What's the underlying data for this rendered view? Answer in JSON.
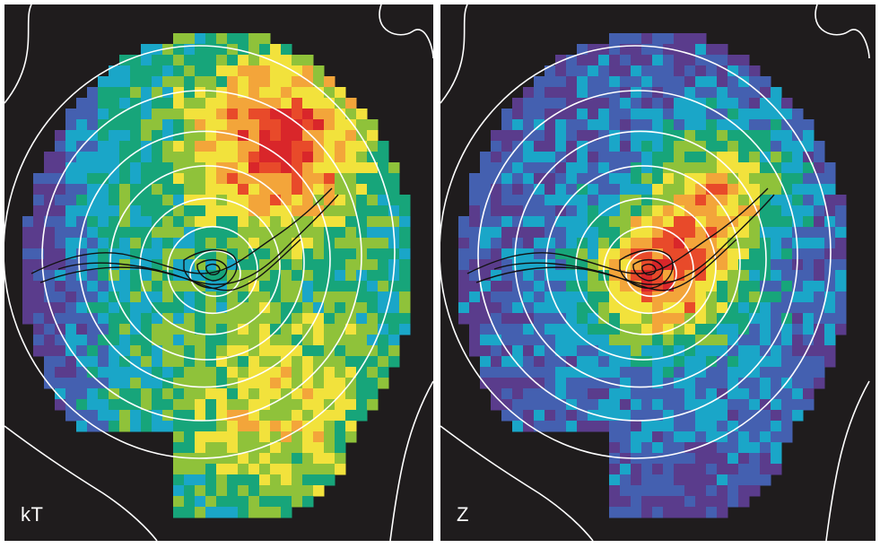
{
  "panels": [
    {
      "label": "kT",
      "map": "temperature"
    },
    {
      "label": "Z",
      "map": "metallicity"
    }
  ],
  "colors": {
    "background": "#1f1c1d",
    "contour_white": "#ffffff",
    "contour_black": "#111111",
    "colormap": [
      "#5a3c8c",
      "#4460b0",
      "#1aa6c8",
      "#17a57a",
      "#8fc23a",
      "#f2e23c",
      "#f3a53a",
      "#e84a2a",
      "#d9262a",
      "#ffffff"
    ]
  }
}
